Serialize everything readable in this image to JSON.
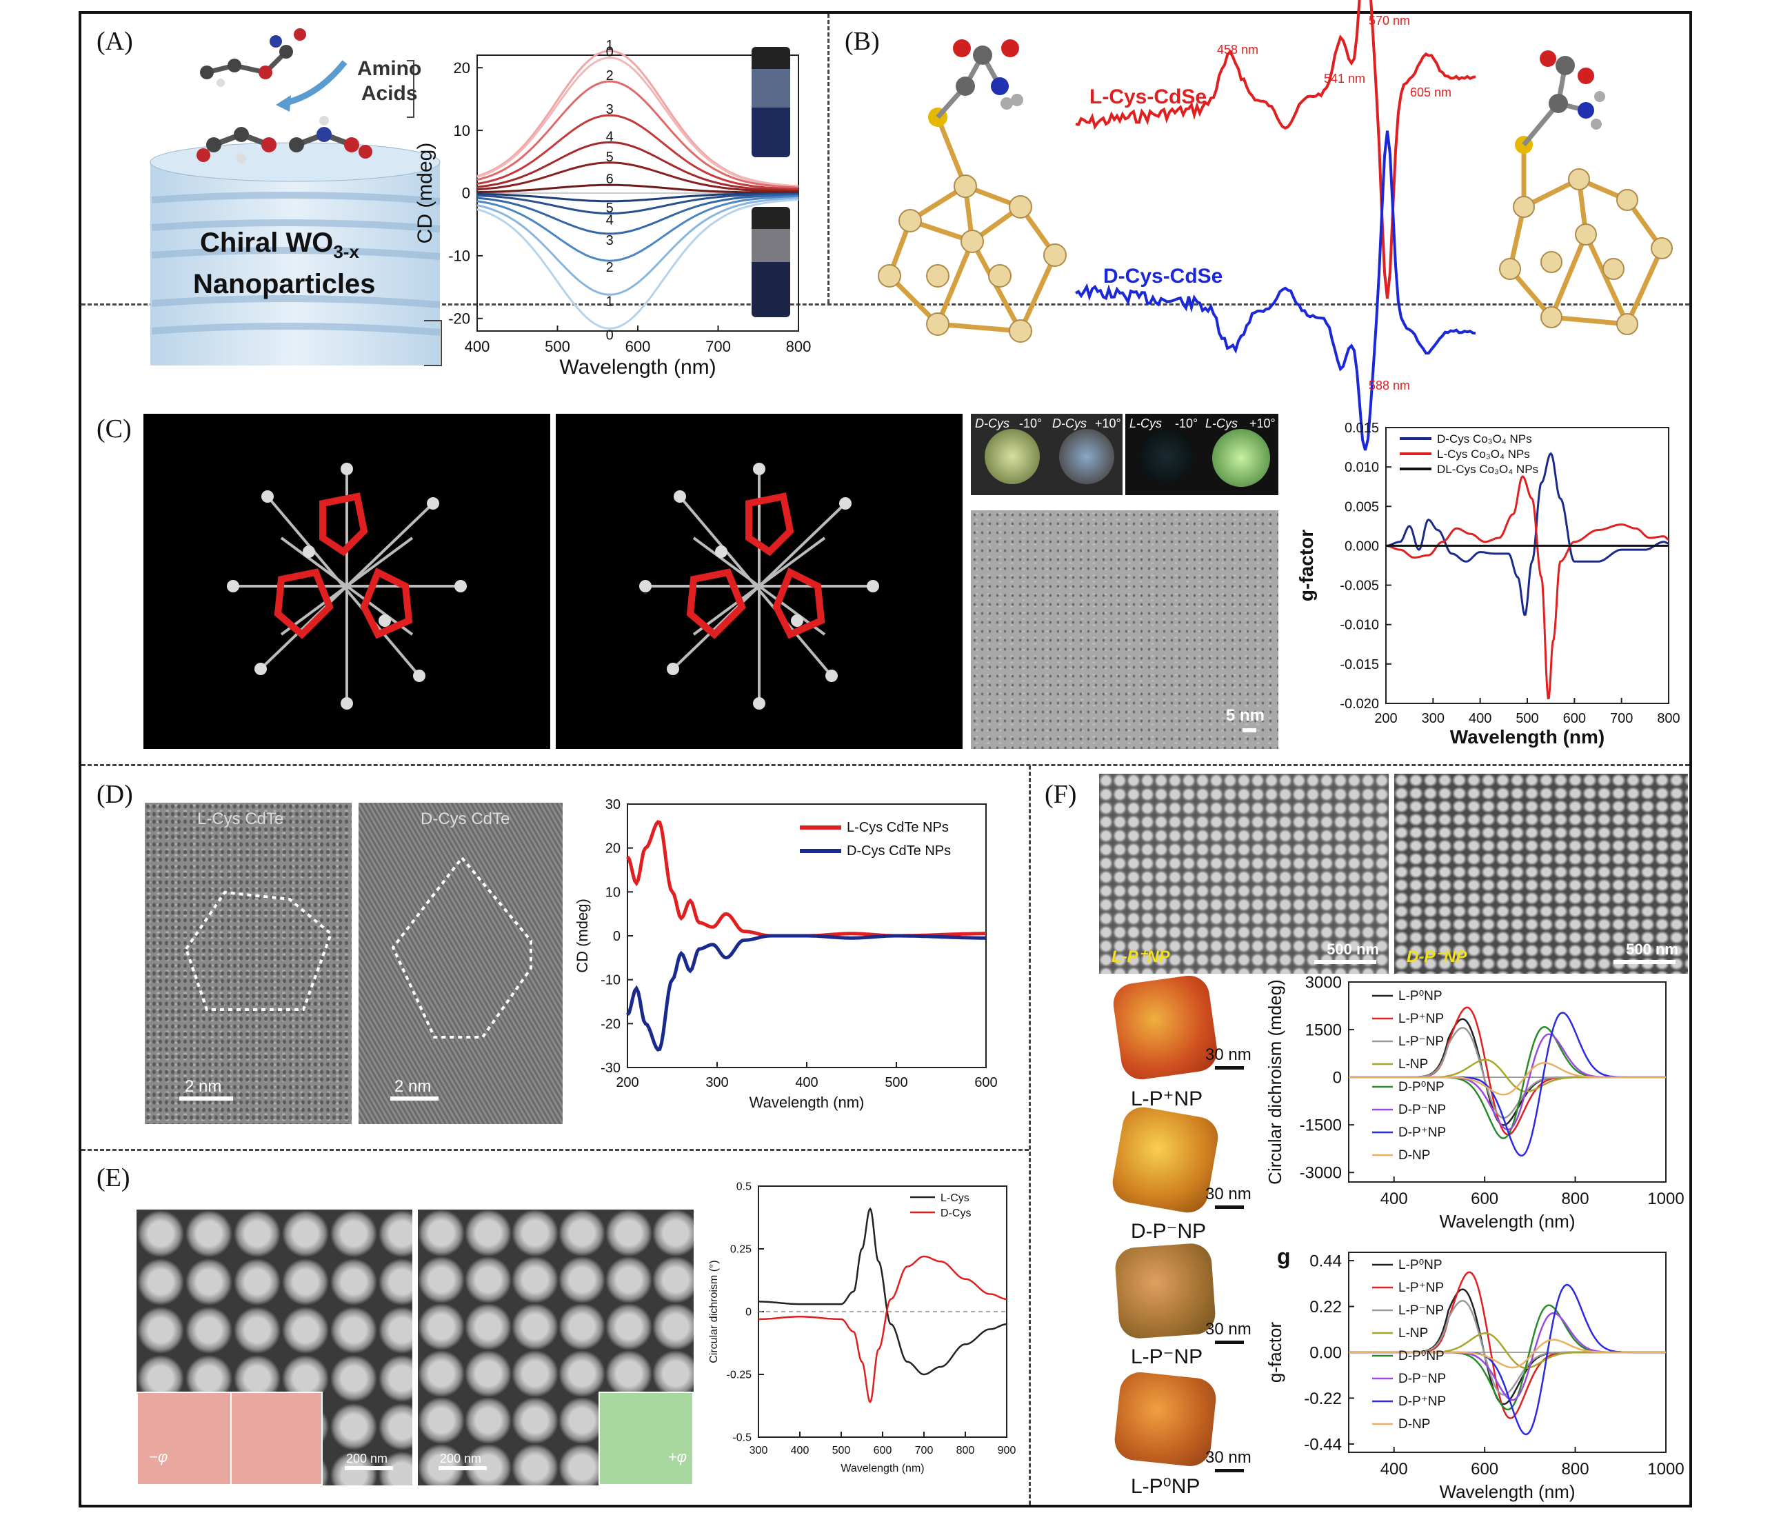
{
  "panels": {
    "A": {
      "label": "(A)",
      "illustration_title": "Chiral WO",
      "illustration_subscript": "3-x",
      "illustration_title2": "Nanoparticles",
      "amino_label": "Amino",
      "amino_label2": "Acids",
      "curve_labels_top": [
        "1",
        "0",
        "2",
        "3",
        "4",
        "5",
        "6"
      ],
      "curve_labels_bottom": [
        "5",
        "4",
        "3",
        "2",
        "1",
        "0"
      ]
    },
    "B": {
      "label": "(B)",
      "l_label": "L-Cys-CdSe",
      "d_label": "D-Cys-CdSe",
      "peaks": [
        "458 nm",
        "541 nm",
        "570 nm",
        "605 nm",
        "588 nm"
      ]
    },
    "C": {
      "label": "(C)",
      "insets": [
        {
          "name": "D-Cys",
          "angle": "-10°"
        },
        {
          "name": "D-Cys",
          "angle": "+10°"
        },
        {
          "name": "L-Cys",
          "angle": "-10°"
        },
        {
          "name": "L-Cys",
          "angle": "+10°"
        }
      ],
      "scalebar": "5 nm"
    },
    "D": {
      "label": "(D)",
      "tem_left": "L-Cys CdTe",
      "tem_right": "D-Cys CdTe",
      "scalebar": "2 nm"
    },
    "E": {
      "label": "(E)",
      "scalebar": "200 nm",
      "inset_minus": "−φ",
      "inset_plus": "+φ"
    },
    "F": {
      "label": "(F)",
      "sem_left_label": "L-P⁺NP",
      "sem_right_label": "D-P⁻NP",
      "sem_scalebar": "500 nm",
      "particles": [
        "L-P⁺NP",
        "D-P⁻NP",
        "L-P⁻NP",
        "L-P⁰NP"
      ],
      "particle_scale": "30 nm",
      "panel_g_letter": "g"
    }
  },
  "colors": {
    "red": "#e02020",
    "blue": "#1a2a8c",
    "black": "#222222"
  },
  "chart_data": [
    {
      "id": "A",
      "type": "line",
      "title": "",
      "xlabel": "Wavelength (nm)",
      "ylabel": "CD (mdeg)",
      "xlim": [
        400,
        800
      ],
      "ylim": [
        -22,
        22
      ],
      "xticks": [
        400,
        500,
        600,
        700,
        800
      ],
      "yticks": [
        -20,
        -10,
        0,
        10,
        20
      ],
      "series": [
        {
          "name": "1",
          "peak": 21,
          "color": "#f2a5a5"
        },
        {
          "name": "0",
          "peak": 20,
          "color": "#f0b8b8"
        },
        {
          "name": "2",
          "peak": 16.5,
          "color": "#e06a6a"
        },
        {
          "name": "3",
          "peak": 11.5,
          "color": "#c43a3a"
        },
        {
          "name": "4",
          "peak": 7.5,
          "color": "#a52a2a"
        },
        {
          "name": "5",
          "peak": 4.5,
          "color": "#8a2020"
        },
        {
          "name": "6",
          "peak": 1.2,
          "color": "#6e1a1a"
        },
        {
          "name": "5",
          "peak": -1.2,
          "color": "#1f3f7a"
        },
        {
          "name": "4",
          "peak": -3,
          "color": "#28508f"
        },
        {
          "name": "3",
          "peak": -6,
          "color": "#3366a8"
        },
        {
          "name": "2",
          "peak": -10,
          "color": "#4d86c2"
        },
        {
          "name": "1",
          "peak": -15,
          "color": "#8ab6dd"
        },
        {
          "name": "0",
          "peak": -20,
          "color": "#b6d3ec"
        }
      ]
    },
    {
      "id": "C",
      "type": "line",
      "xlabel": "Wavelength (nm)",
      "ylabel": "g-factor",
      "xlim": [
        200,
        800
      ],
      "ylim": [
        -0.02,
        0.015
      ],
      "xticks": [
        200,
        300,
        400,
        500,
        600,
        700,
        800
      ],
      "yticks": [
        0.015,
        0.01,
        0.005,
        0.0,
        -0.005,
        -0.01,
        -0.015,
        -0.02
      ],
      "legend": [
        "D-Cys Co₃O₄ NPs",
        "L-Cys Co₃O₄  NPs",
        "DL-Cys Co₃O₄ NPs"
      ],
      "series": [
        {
          "name": "D-Cys Co₃O₄ NPs",
          "color": "#1a2a8c",
          "x": [
            200,
            230,
            250,
            270,
            290,
            310,
            340,
            370,
            400,
            430,
            460,
            480,
            495,
            510,
            530,
            550,
            570,
            600,
            650,
            700,
            750,
            790,
            800
          ],
          "y": [
            0,
            0.0005,
            0.0025,
            -0.0005,
            0.0033,
            0.002,
            -0.001,
            -0.002,
            -0.0008,
            -0.001,
            -0.001,
            -0.004,
            -0.0088,
            -0.002,
            0.008,
            0.0117,
            0.006,
            -0.002,
            -0.002,
            -0.0005,
            -0.0005,
            0.0005,
            0.0003
          ]
        },
        {
          "name": "L-Cys Co₃O₄  NPs",
          "color": "#e02020",
          "x": [
            200,
            230,
            260,
            290,
            320,
            350,
            380,
            410,
            440,
            470,
            490,
            510,
            530,
            545,
            555,
            570,
            600,
            650,
            700,
            730,
            760,
            790,
            800
          ],
          "y": [
            0,
            -0.0005,
            -0.0015,
            -0.0012,
            0.0005,
            0.0022,
            0.0015,
            0.0005,
            0.001,
            0.004,
            0.0088,
            0.006,
            -0.004,
            -0.0195,
            -0.012,
            -0.002,
            0.0005,
            0.002,
            0.0027,
            0.0022,
            0.001,
            0.0012,
            0.0008
          ]
        },
        {
          "name": "DL-Cys Co₃O₄ NPs",
          "color": "#111111",
          "x": [
            200,
            800
          ],
          "y": [
            0,
            0
          ]
        }
      ]
    },
    {
      "id": "D",
      "type": "line",
      "xlabel": "Wavelength (nm)",
      "ylabel": "CD (mdeg)",
      "xlim": [
        200,
        600
      ],
      "ylim": [
        -30,
        30
      ],
      "xticks": [
        200,
        300,
        400,
        500,
        600
      ],
      "yticks": [
        30,
        20,
        10,
        0,
        -10,
        -20,
        -30
      ],
      "legend": [
        "L-Cys CdTe NPs",
        "D-Cys CdTe NPs"
      ],
      "series": [
        {
          "name": "L-Cys CdTe NPs",
          "color": "#e02020",
          "x": [
            200,
            210,
            220,
            235,
            250,
            260,
            270,
            280,
            295,
            310,
            330,
            360,
            400,
            450,
            500,
            600
          ],
          "y": [
            18,
            12,
            20,
            26,
            10,
            4,
            8,
            3,
            2,
            5,
            1,
            0,
            0,
            0.5,
            0,
            0.5
          ]
        },
        {
          "name": "D-Cys CdTe NPs",
          "color": "#1a2a8c",
          "x": [
            200,
            210,
            220,
            235,
            250,
            260,
            270,
            280,
            295,
            310,
            330,
            360,
            400,
            450,
            500,
            600
          ],
          "y": [
            -18,
            -12,
            -20,
            -26,
            -10,
            -4,
            -8,
            -3,
            -2,
            -5,
            -1,
            0,
            0,
            -0.5,
            0,
            -0.5
          ]
        }
      ]
    },
    {
      "id": "E",
      "type": "line",
      "xlabel": "Wavelength (nm)",
      "ylabel": "Circular dichroism (°)",
      "xlim": [
        300,
        900
      ],
      "ylim": [
        -0.5,
        0.5
      ],
      "xticks": [
        300,
        400,
        500,
        600,
        700,
        800,
        900
      ],
      "yticks": [
        0.5,
        0.25,
        0,
        -0.25,
        -0.5
      ],
      "legend": [
        "L-Cys",
        "D-Cys"
      ],
      "series": [
        {
          "name": "L-Cys",
          "color": "#222222",
          "x": [
            300,
            400,
            500,
            530,
            550,
            570,
            590,
            620,
            660,
            700,
            740,
            800,
            860,
            900
          ],
          "y": [
            0.04,
            0.03,
            0.03,
            0.08,
            0.25,
            0.41,
            0.2,
            -0.05,
            -0.2,
            -0.25,
            -0.22,
            -0.13,
            -0.07,
            -0.05
          ]
        },
        {
          "name": "D-Cys",
          "color": "#e02020",
          "x": [
            300,
            400,
            500,
            530,
            550,
            570,
            590,
            620,
            660,
            700,
            740,
            800,
            860,
            900
          ],
          "y": [
            -0.03,
            -0.02,
            -0.03,
            -0.08,
            -0.2,
            -0.36,
            -0.15,
            0.05,
            0.18,
            0.22,
            0.2,
            0.13,
            0.07,
            0.05
          ]
        }
      ]
    },
    {
      "id": "F1",
      "type": "line",
      "xlabel": "Wavelength (nm)",
      "ylabel": "Circular dichroism (mdeg)",
      "xlim": [
        300,
        1000
      ],
      "ylim": [
        -3300,
        3000
      ],
      "xticks": [
        400,
        600,
        800,
        1000
      ],
      "yticks": [
        3000,
        1500,
        0,
        -1500,
        -3000
      ],
      "legend": [
        "L-P⁰NP",
        "L-P⁺NP",
        "L-P⁻NP",
        "L-NP",
        "D-P⁰NP",
        "D-P⁻NP",
        "D-P⁺NP",
        "D-NP"
      ],
      "series": [
        {
          "name": "L-P⁰NP",
          "color": "#222222",
          "amp": 2000,
          "center": 590,
          "sign": 1
        },
        {
          "name": "L-P⁺NP",
          "color": "#e02020",
          "amp": 2400,
          "center": 600,
          "sign": 1
        },
        {
          "name": "L-P⁻NP",
          "color": "#999999",
          "amp": 1700,
          "center": 590,
          "sign": 1
        },
        {
          "name": "L-NP",
          "color": "#a6a62a",
          "amp": 600,
          "center": 640,
          "sign": 1
        },
        {
          "name": "D-P⁰NP",
          "color": "#2a8a2a",
          "amp": 2100,
          "center": 680,
          "sign": -1
        },
        {
          "name": "D-P⁻NP",
          "color": "#9a4ae0",
          "amp": 1800,
          "center": 690,
          "sign": -1
        },
        {
          "name": "D-P⁺NP",
          "color": "#2a2ae0",
          "amp": 2700,
          "center": 720,
          "sign": -1
        },
        {
          "name": "D-NP",
          "color": "#e8b060",
          "amp": 600,
          "center": 680,
          "sign": -1
        }
      ]
    },
    {
      "id": "F2",
      "type": "line",
      "xlabel": "Wavelength (nm)",
      "ylabel": "g-factor",
      "xlim": [
        300,
        1000
      ],
      "ylim": [
        -0.48,
        0.48
      ],
      "xticks": [
        400,
        600,
        800,
        1000
      ],
      "yticks": [
        0.44,
        0.22,
        0.0,
        -0.22,
        -0.44
      ],
      "legend": [
        "L-P⁰NP",
        "L-P⁺NP",
        "L-P⁻NP",
        "L-NP",
        "D-P⁰NP",
        "D-P⁻NP",
        "D-P⁺NP",
        "D-NP"
      ],
      "series": [
        {
          "name": "L-P⁰NP",
          "color": "#222222",
          "amp": 0.33,
          "center": 590,
          "sign": 1
        },
        {
          "name": "L-P⁺NP",
          "color": "#e02020",
          "amp": 0.42,
          "center": 605,
          "sign": 1
        },
        {
          "name": "L-P⁻NP",
          "color": "#999999",
          "amp": 0.27,
          "center": 590,
          "sign": 1
        },
        {
          "name": "L-NP",
          "color": "#a6a62a",
          "amp": 0.1,
          "center": 640,
          "sign": 1
        },
        {
          "name": "D-P⁰NP",
          "color": "#2a8a2a",
          "amp": 0.3,
          "center": 690,
          "sign": -1
        },
        {
          "name": "D-P⁻NP",
          "color": "#9a4ae0",
          "amp": 0.25,
          "center": 700,
          "sign": -1
        },
        {
          "name": "D-P⁺NP",
          "color": "#2a2ae0",
          "amp": 0.43,
          "center": 730,
          "sign": -1
        },
        {
          "name": "D-NP",
          "color": "#e8b060",
          "amp": 0.08,
          "center": 700,
          "sign": -1
        }
      ]
    }
  ]
}
